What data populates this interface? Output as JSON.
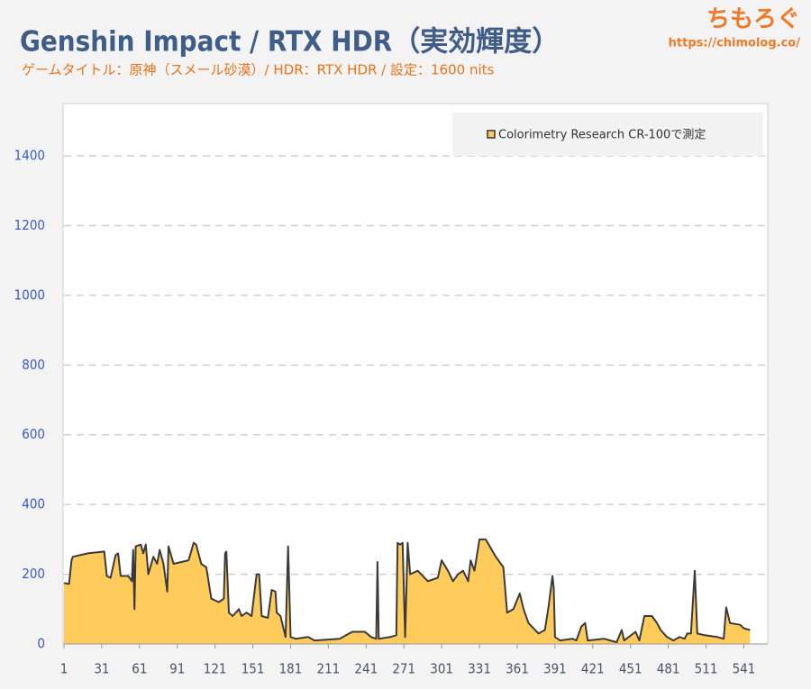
{
  "chart_data": {
    "type": "area",
    "title": "Genshin Impact / RTX HDR（実効輝度）",
    "subtitle": "ゲームタイトル：原神（スメール砂漠）/ HDR：RTX HDR / 設定：1600 nits",
    "brand": "ちもろぐ",
    "url": "https://chimolog.co/",
    "xlim": [
      1,
      560
    ],
    "xticks": [
      1,
      31,
      61,
      91,
      121,
      151,
      181,
      211,
      241,
      271,
      301,
      331,
      361,
      391,
      421,
      451,
      481,
      511,
      541
    ],
    "ylim": [
      0,
      1550
    ],
    "yticks": [
      0,
      200,
      400,
      600,
      800,
      1000,
      1200,
      1400
    ],
    "grid": true,
    "legend": "upper right",
    "x": [
      1,
      5,
      7,
      8,
      20,
      33,
      35,
      38,
      42,
      44,
      46,
      52,
      55,
      56,
      57,
      58,
      62,
      64,
      66,
      68,
      72,
      75,
      77,
      80,
      83,
      84,
      86,
      88,
      100,
      104,
      106,
      110,
      114,
      118,
      124,
      128,
      129,
      130,
      132,
      135,
      140,
      142,
      146,
      150,
      154,
      156,
      158,
      163,
      166,
      169,
      170,
      173,
      177,
      179,
      181,
      185,
      195,
      200,
      220,
      225,
      230,
      240,
      245,
      249,
      250,
      251,
      260,
      265,
      266,
      268,
      270,
      272,
      274,
      276,
      282,
      290,
      298,
      301,
      306,
      310,
      314,
      318,
      322,
      324,
      327,
      331,
      336,
      344,
      350,
      353,
      358,
      363,
      366,
      370,
      378,
      383,
      386,
      389,
      390,
      391,
      395,
      405,
      408,
      412,
      415,
      417,
      430,
      440,
      444,
      446,
      455,
      458,
      462,
      468,
      472,
      475,
      480,
      485,
      490,
      494,
      496,
      499,
      502,
      504,
      510,
      520,
      525,
      527,
      530,
      538,
      541,
      546
    ],
    "series": [
      {
        "name": "Colorimetry Research CR-100で測定",
        "color": "#ffcc5c",
        "line_color": "#3a3a3a",
        "values": [
          175,
          172,
          240,
          250,
          260,
          265,
          195,
          190,
          255,
          260,
          195,
          195,
          180,
          270,
          100,
          280,
          285,
          260,
          285,
          200,
          250,
          230,
          270,
          230,
          150,
          280,
          255,
          230,
          240,
          290,
          285,
          230,
          220,
          130,
          120,
          130,
          260,
          265,
          90,
          80,
          100,
          80,
          90,
          80,
          200,
          200,
          80,
          75,
          155,
          150,
          90,
          80,
          20,
          280,
          20,
          15,
          20,
          10,
          15,
          25,
          35,
          35,
          20,
          15,
          235,
          15,
          20,
          25,
          290,
          285,
          290,
          20,
          290,
          200,
          210,
          180,
          190,
          240,
          210,
          180,
          200,
          210,
          180,
          240,
          210,
          300,
          300,
          250,
          220,
          90,
          100,
          145,
          100,
          60,
          30,
          40,
          110,
          195,
          160,
          20,
          10,
          15,
          10,
          50,
          60,
          10,
          15,
          5,
          40,
          10,
          35,
          10,
          80,
          80,
          60,
          40,
          20,
          10,
          20,
          15,
          30,
          30,
          210,
          30,
          25,
          20,
          15,
          105,
          60,
          55,
          45,
          40
        ]
      }
    ]
  }
}
